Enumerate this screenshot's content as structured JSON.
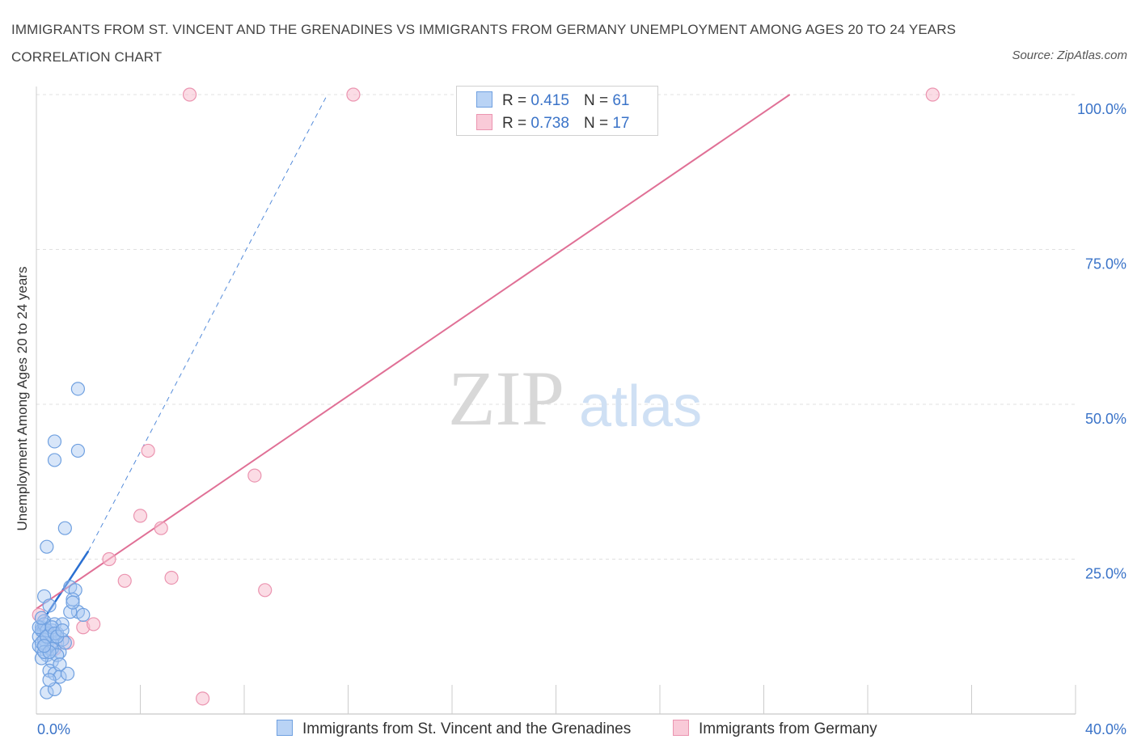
{
  "title": "IMMIGRANTS FROM ST. VINCENT AND THE GRENADINES VS IMMIGRANTS FROM GERMANY UNEMPLOYMENT AMONG AGES 20 TO 24 YEARS CORRELATION CHART",
  "source": "Source: ZipAtlas.com",
  "legend": {
    "r_label": "R =",
    "n_label": "N =",
    "series1": {
      "r": "0.415",
      "n": "61"
    },
    "series2": {
      "r": "0.738",
      "n": "17"
    }
  },
  "watermark": {
    "zip": "ZIP",
    "atlas": "atlas"
  },
  "colors": {
    "series1_fill": "#a9c8f2",
    "series1_stroke": "#6fa0e0",
    "series1_line": "#2a6fd1",
    "series2_fill": "#f7bfd0",
    "series2_stroke": "#eb94b0",
    "series2_line": "#e07096",
    "axis_label": "#3a73c8",
    "grid": "#e0e0e0"
  },
  "chart_data": {
    "type": "scatter",
    "title": "IMMIGRANTS FROM ST. VINCENT AND THE GRENADINES VS IMMIGRANTS FROM GERMANY UNEMPLOYMENT AMONG AGES 20 TO 24 YEARS CORRELATION CHART",
    "xlabel": "",
    "ylabel": "Unemployment Among Ages 20 to 24 years",
    "xlim": [
      0,
      40
    ],
    "ylim": [
      0,
      100
    ],
    "x_ticks": [
      "0.0%",
      "40.0%"
    ],
    "y_ticks": [
      {
        "value": 25,
        "label": "25.0%"
      },
      {
        "value": 50,
        "label": "50.0%"
      },
      {
        "value": 75,
        "label": "75.0%"
      },
      {
        "value": 100,
        "label": "100.0%"
      }
    ],
    "legend_position": "top-center",
    "series": [
      {
        "name": "Immigrants from St. Vincent and the Grenadines",
        "r": 0.415,
        "n": 61,
        "trend": {
          "x0": 0.0,
          "y0": 13.5,
          "x1": 2.0,
          "y1": 26.3,
          "dashed_to": {
            "x": 11.2,
            "y": 100
          }
        },
        "points": [
          [
            0.2,
            14.0
          ],
          [
            0.3,
            13.0
          ],
          [
            0.1,
            12.5
          ],
          [
            0.4,
            11.0
          ],
          [
            0.2,
            10.5
          ],
          [
            0.5,
            12.0
          ],
          [
            0.6,
            13.5
          ],
          [
            0.3,
            15.0
          ],
          [
            0.7,
            14.5
          ],
          [
            0.8,
            11.5
          ],
          [
            0.4,
            9.5
          ],
          [
            0.6,
            8.5
          ],
          [
            0.9,
            10.0
          ],
          [
            1.0,
            12.0
          ],
          [
            0.5,
            7.0
          ],
          [
            0.7,
            6.5
          ],
          [
            0.9,
            6.0
          ],
          [
            1.2,
            6.5
          ],
          [
            0.4,
            3.5
          ],
          [
            0.7,
            4.0
          ],
          [
            0.3,
            19.0
          ],
          [
            0.5,
            17.5
          ],
          [
            1.3,
            20.5
          ],
          [
            1.5,
            20.0
          ],
          [
            1.4,
            18.5
          ],
          [
            1.6,
            16.5
          ],
          [
            1.8,
            16.0
          ],
          [
            1.3,
            16.5
          ],
          [
            0.4,
            27.0
          ],
          [
            1.1,
            30.0
          ],
          [
            0.7,
            41.0
          ],
          [
            0.7,
            44.0
          ],
          [
            1.6,
            42.5
          ],
          [
            1.6,
            52.5
          ],
          [
            0.2,
            13.5
          ],
          [
            0.1,
            11.0
          ],
          [
            0.2,
            9.0
          ],
          [
            0.3,
            14.5
          ],
          [
            0.5,
            13.0
          ],
          [
            0.6,
            11.5
          ],
          [
            0.8,
            13.0
          ],
          [
            1.0,
            14.5
          ],
          [
            1.1,
            11.5
          ],
          [
            0.3,
            12.0
          ],
          [
            0.4,
            13.5
          ],
          [
            0.2,
            11.5
          ],
          [
            0.6,
            10.5
          ],
          [
            0.8,
            9.5
          ],
          [
            1.4,
            18.0
          ],
          [
            0.5,
            5.5
          ],
          [
            0.9,
            8.0
          ],
          [
            0.1,
            14.0
          ],
          [
            0.2,
            15.5
          ],
          [
            0.3,
            10.0
          ],
          [
            0.4,
            12.5
          ],
          [
            0.6,
            14.0
          ],
          [
            0.7,
            13.0
          ],
          [
            0.5,
            10.0
          ],
          [
            0.3,
            11.0
          ],
          [
            0.8,
            12.5
          ],
          [
            1.0,
            13.5
          ]
        ]
      },
      {
        "name": "Immigrants from Germany",
        "r": 0.738,
        "n": 17,
        "trend": {
          "x0": 0.0,
          "y0": 17.0,
          "x1": 29.0,
          "y1": 100
        },
        "points": [
          [
            0.1,
            16.0
          ],
          [
            0.7,
            10.5
          ],
          [
            1.2,
            11.5
          ],
          [
            1.8,
            14.0
          ],
          [
            2.2,
            14.5
          ],
          [
            2.8,
            25.0
          ],
          [
            3.4,
            21.5
          ],
          [
            4.0,
            32.0
          ],
          [
            4.3,
            42.5
          ],
          [
            4.8,
            30.0
          ],
          [
            5.2,
            22.0
          ],
          [
            6.4,
            2.5
          ],
          [
            8.4,
            38.5
          ],
          [
            8.8,
            20.0
          ],
          [
            5.9,
            100
          ],
          [
            12.2,
            100
          ],
          [
            34.5,
            100
          ]
        ]
      }
    ]
  }
}
